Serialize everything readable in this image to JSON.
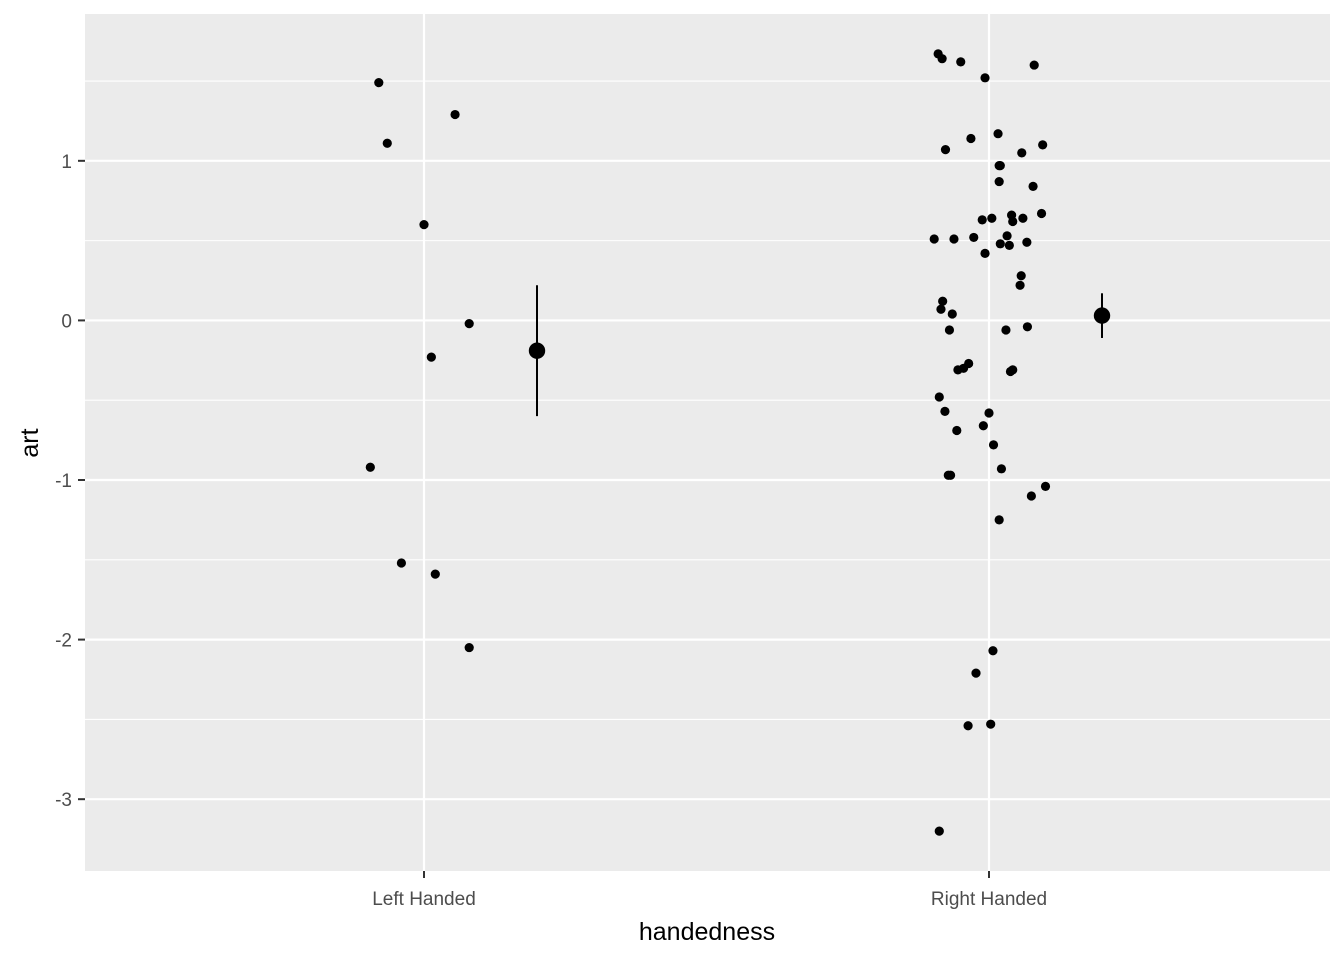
{
  "chart_data": {
    "type": "scatter",
    "title": "",
    "xlabel": "handedness",
    "ylabel": "art",
    "categories": [
      "Left Handed",
      "Right Handed"
    ],
    "ylim": [
      -3.45,
      1.92
    ],
    "y_ticks": [
      1,
      0,
      -1,
      -2,
      -3
    ],
    "y_tick_labels": [
      "1",
      "0",
      "-1",
      "-2",
      "-3"
    ],
    "grid": true,
    "background": "#ebebeb",
    "point_color": "#000000",
    "series": [
      {
        "category": "Left Handed",
        "points": [
          {
            "dx": -0.08,
            "y": 1.49
          },
          {
            "dx": -0.065,
            "y": 1.11
          },
          {
            "dx": 0.055,
            "y": 1.29
          },
          {
            "dx": 0.0,
            "y": 0.6
          },
          {
            "dx": 0.08,
            "y": -0.02
          },
          {
            "dx": 0.013,
            "y": -0.23
          },
          {
            "dx": -0.095,
            "y": -0.92
          },
          {
            "dx": -0.04,
            "y": -1.52
          },
          {
            "dx": 0.02,
            "y": -1.59
          },
          {
            "dx": 0.08,
            "y": -2.05
          }
        ],
        "summary": {
          "mean": -0.19,
          "lower": -0.6,
          "upper": 0.22
        }
      },
      {
        "category": "Right Handed",
        "points": [
          {
            "dx": -0.09,
            "y": 1.67
          },
          {
            "dx": -0.083,
            "y": 1.64
          },
          {
            "dx": -0.05,
            "y": 1.62
          },
          {
            "dx": 0.08,
            "y": 1.6
          },
          {
            "dx": -0.007,
            "y": 1.52
          },
          {
            "dx": 0.016,
            "y": 1.17
          },
          {
            "dx": -0.032,
            "y": 1.14
          },
          {
            "dx": 0.095,
            "y": 1.1
          },
          {
            "dx": -0.077,
            "y": 1.07
          },
          {
            "dx": 0.058,
            "y": 1.05
          },
          {
            "dx": 0.018,
            "y": 0.97
          },
          {
            "dx": 0.02,
            "y": 0.97
          },
          {
            "dx": 0.018,
            "y": 0.87
          },
          {
            "dx": 0.078,
            "y": 0.84
          },
          {
            "dx": 0.093,
            "y": 0.67
          },
          {
            "dx": 0.04,
            "y": 0.66
          },
          {
            "dx": 0.06,
            "y": 0.64
          },
          {
            "dx": 0.005,
            "y": 0.64
          },
          {
            "dx": -0.012,
            "y": 0.63
          },
          {
            "dx": 0.042,
            "y": 0.62
          },
          {
            "dx": 0.032,
            "y": 0.53
          },
          {
            "dx": -0.097,
            "y": 0.51
          },
          {
            "dx": -0.062,
            "y": 0.51
          },
          {
            "dx": -0.027,
            "y": 0.52
          },
          {
            "dx": 0.067,
            "y": 0.49
          },
          {
            "dx": 0.02,
            "y": 0.48
          },
          {
            "dx": 0.036,
            "y": 0.47
          },
          {
            "dx": -0.007,
            "y": 0.42
          },
          {
            "dx": 0.057,
            "y": 0.28
          },
          {
            "dx": 0.055,
            "y": 0.22
          },
          {
            "dx": -0.082,
            "y": 0.12
          },
          {
            "dx": -0.085,
            "y": 0.07
          },
          {
            "dx": -0.065,
            "y": 0.04
          },
          {
            "dx": 0.068,
            "y": -0.04
          },
          {
            "dx": -0.07,
            "y": -0.06
          },
          {
            "dx": 0.03,
            "y": -0.06
          },
          {
            "dx": -0.036,
            "y": -0.27
          },
          {
            "dx": -0.045,
            "y": -0.3
          },
          {
            "dx": -0.055,
            "y": -0.31
          },
          {
            "dx": 0.042,
            "y": -0.31
          },
          {
            "dx": 0.038,
            "y": -0.32
          },
          {
            "dx": -0.088,
            "y": -0.48
          },
          {
            "dx": -0.078,
            "y": -0.57
          },
          {
            "dx": 0.0,
            "y": -0.58
          },
          {
            "dx": -0.01,
            "y": -0.66
          },
          {
            "dx": -0.057,
            "y": -0.69
          },
          {
            "dx": 0.008,
            "y": -0.78
          },
          {
            "dx": 0.022,
            "y": -0.93
          },
          {
            "dx": -0.072,
            "y": -0.97
          },
          {
            "dx": -0.068,
            "y": -0.97
          },
          {
            "dx": 0.1,
            "y": -1.04
          },
          {
            "dx": 0.075,
            "y": -1.1
          },
          {
            "dx": 0.018,
            "y": -1.25
          },
          {
            "dx": 0.007,
            "y": -2.07
          },
          {
            "dx": -0.023,
            "y": -2.21
          },
          {
            "dx": 0.003,
            "y": -2.53
          },
          {
            "dx": -0.037,
            "y": -2.54
          },
          {
            "dx": -0.088,
            "y": -3.2
          }
        ],
        "summary": {
          "mean": 0.03,
          "lower": -0.11,
          "upper": 0.17
        }
      }
    ]
  }
}
